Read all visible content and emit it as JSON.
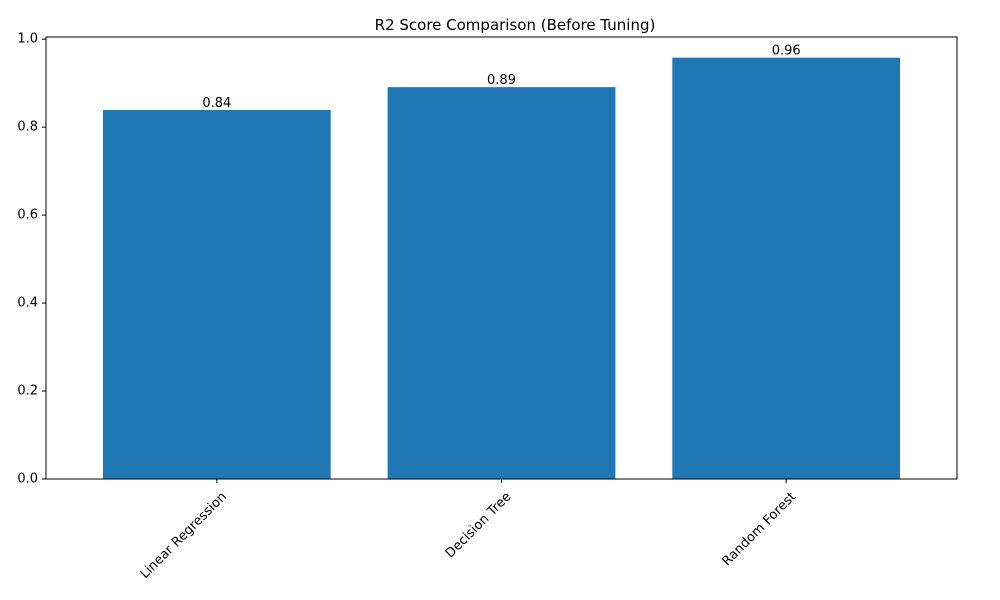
{
  "chart_data": {
    "type": "bar",
    "title": "R2 Score Comparison (Before Tuning)",
    "xlabel": "",
    "ylabel": "",
    "categories": [
      "Linear Regression",
      "Decision Tree",
      "Random Forest"
    ],
    "values": [
      0.839,
      0.891,
      0.958
    ],
    "data_labels": [
      "0.84",
      "0.89",
      "0.96"
    ],
    "ylim": [
      0,
      1.005
    ],
    "yticks": [
      0.0,
      0.2,
      0.4,
      0.6,
      0.8,
      1.0
    ],
    "ytick_labels": [
      "0.0",
      "0.2",
      "0.4",
      "0.6",
      "0.8",
      "1.0"
    ],
    "x_tick_rotation_deg": 45,
    "grid": false,
    "legend": "none",
    "bar_color": "#1f77b4"
  }
}
